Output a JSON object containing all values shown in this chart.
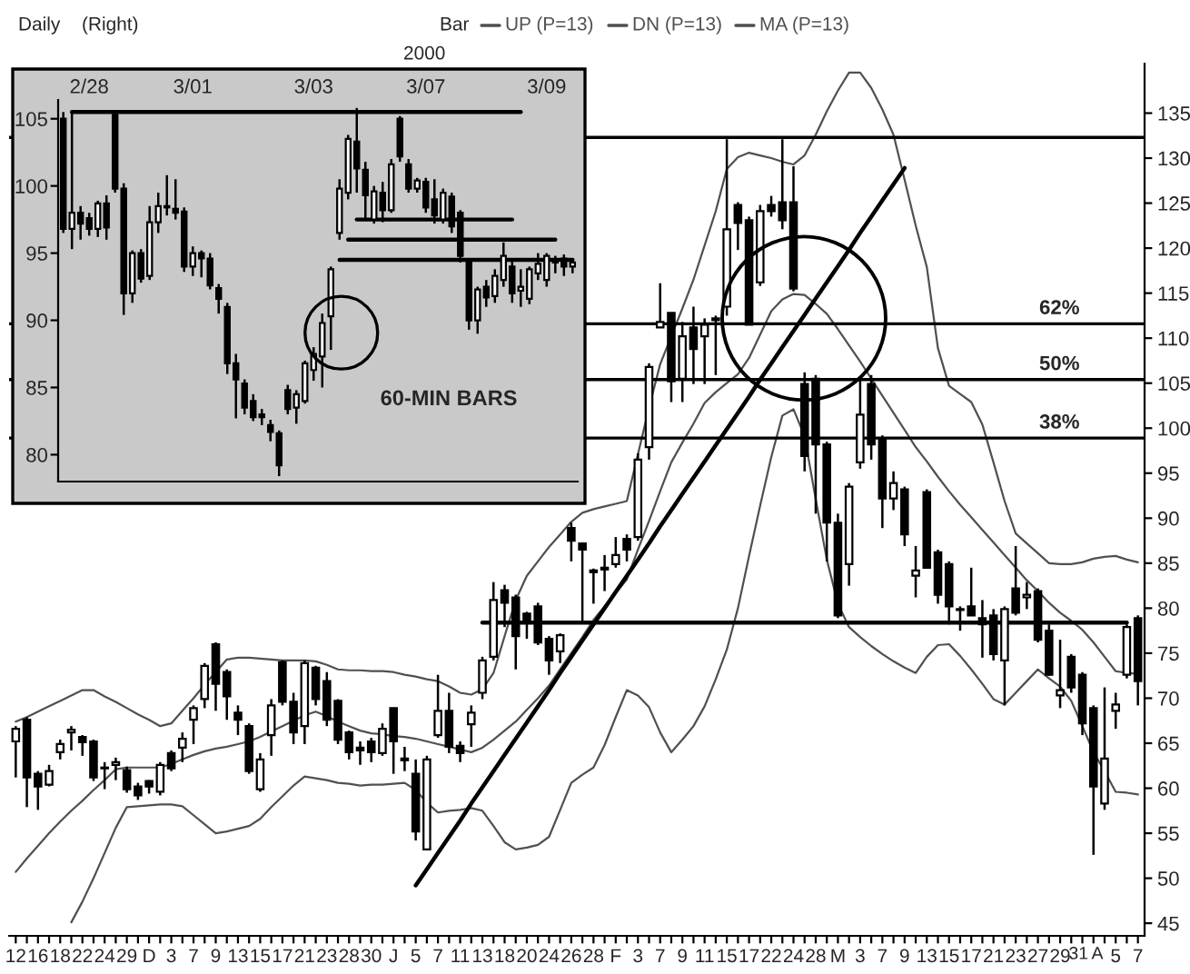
{
  "chart_data": [
    {
      "type": "candlestick",
      "annotations": [
        "Daily",
        "(Right)",
        "Bar",
        "2000",
        {
          "text": "62%",
          "y": 111.6
        },
        {
          "text": "50%",
          "y": 105.4
        },
        {
          "text": "38%",
          "y": 98.9
        }
      ],
      "categories": [
        "12",
        null,
        "16",
        null,
        "18",
        null,
        "22",
        null,
        "24",
        null,
        "29",
        null,
        "D",
        null,
        "3",
        null,
        "7",
        null,
        "9",
        null,
        "13",
        null,
        "15",
        null,
        "17",
        null,
        "21",
        null,
        "23",
        null,
        "28",
        null,
        "30",
        null,
        "J",
        null,
        "5",
        null,
        "7",
        null,
        "11",
        null,
        "13",
        null,
        "18",
        null,
        "20",
        null,
        "24",
        null,
        "26",
        null,
        "28",
        null,
        "F",
        null,
        "3",
        null,
        "7",
        null,
        "9",
        null,
        "11",
        null,
        "15",
        null,
        "17",
        null,
        "22",
        null,
        "24",
        null,
        "28",
        null,
        "M",
        null,
        "3",
        null,
        "7",
        null,
        "9",
        null,
        "13",
        null,
        "15",
        null,
        "17",
        null,
        "21",
        null,
        "23",
        null,
        "27",
        null,
        "29",
        null,
        "31",
        "A",
        null,
        "5",
        null,
        "7"
      ],
      "ohlc": [
        [
          65.2,
          66.9,
          61.2,
          66.6
        ],
        [
          67.6,
          67.9,
          57.9,
          61.2
        ],
        [
          61.6,
          61.9,
          57.6,
          60.2
        ],
        [
          60.4,
          62.6,
          60.2,
          61.9
        ],
        [
          64.0,
          65.4,
          63.2,
          64.9
        ],
        [
          66.2,
          66.9,
          64.2,
          66.5
        ],
        [
          65.7,
          65.9,
          63.6,
          65.1
        ],
        [
          65.2,
          65.4,
          60.8,
          61.2
        ],
        [
          62.3,
          62.9,
          59.9,
          62.2
        ],
        [
          62.6,
          63.4,
          60.9,
          62.9
        ],
        [
          62.0,
          62.4,
          59.5,
          59.9
        ],
        [
          60.2,
          60.6,
          58.7,
          59.2
        ],
        [
          60.8,
          60.9,
          59.4,
          60.2
        ],
        [
          59.6,
          62.9,
          59.2,
          62.6
        ],
        [
          63.9,
          64.2,
          61.9,
          62.2
        ],
        [
          64.5,
          66.2,
          62.9,
          65.5
        ],
        [
          67.6,
          69.2,
          64.9,
          68.9
        ],
        [
          69.9,
          73.9,
          68.9,
          73.6
        ],
        [
          76.0,
          76.2,
          68.6,
          71.6
        ],
        [
          72.9,
          73.2,
          67.6,
          70.2
        ],
        [
          68.4,
          69.2,
          65.9,
          67.6
        ],
        [
          66.9,
          67.2,
          61.6,
          61.9
        ],
        [
          59.9,
          63.9,
          59.6,
          63.2
        ],
        [
          65.9,
          69.9,
          63.6,
          69.2
        ],
        [
          74.0,
          74.2,
          69.2,
          69.6
        ],
        [
          69.6,
          70.6,
          64.9,
          66.2
        ],
        [
          66.9,
          74.2,
          64.9,
          73.9
        ],
        [
          73.4,
          73.6,
          69.2,
          69.9
        ],
        [
          71.9,
          72.9,
          66.9,
          67.6
        ],
        [
          69.7,
          69.9,
          64.9,
          65.4
        ],
        [
          66.2,
          66.4,
          63.2,
          64.0
        ],
        [
          64.5,
          65.2,
          62.6,
          64.2
        ],
        [
          65.2,
          65.6,
          62.9,
          64.0
        ],
        [
          63.9,
          67.2,
          63.6,
          66.6
        ],
        [
          68.9,
          68.9,
          61.6,
          65.2
        ],
        [
          63.3,
          64.6,
          61.9,
          63.1
        ],
        [
          61.6,
          63.2,
          54.2,
          55.2
        ],
        [
          53.2,
          63.6,
          53.2,
          63.2
        ],
        [
          65.9,
          72.6,
          65.6,
          68.6
        ],
        [
          68.6,
          70.6,
          63.9,
          64.6
        ],
        [
          64.7,
          65.2,
          62.9,
          63.9
        ],
        [
          67.1,
          69.2,
          64.6,
          68.4
        ],
        [
          70.6,
          74.6,
          69.9,
          74.2
        ],
        [
          74.6,
          82.9,
          74.2,
          80.9
        ],
        [
          82.0,
          82.6,
          77.9,
          80.6
        ],
        [
          81.2,
          81.5,
          73.2,
          76.9
        ],
        [
          79.4,
          79.6,
          76.6,
          78.6
        ],
        [
          80.2,
          80.6,
          75.9,
          76.2
        ],
        [
          76.6,
          76.9,
          72.6,
          74.2
        ],
        [
          75.2,
          77.2,
          73.9,
          77.0
        ],
        [
          88.9,
          89.5,
          85.2,
          87.5
        ],
        [
          87.2,
          87.2,
          78.5,
          86.5
        ],
        [
          84.2,
          84.4,
          80.5,
          84.0
        ],
        [
          84.3,
          85.9,
          81.9,
          84.5
        ],
        [
          84.9,
          87.9,
          84.5,
          85.9
        ],
        [
          87.7,
          88.2,
          85.2,
          86.5
        ],
        [
          87.9,
          97.2,
          87.5,
          96.5
        ],
        [
          97.9,
          107.2,
          96.5,
          106.8
        ],
        [
          111.2,
          116.1,
          111.2,
          111.8
        ],
        [
          112.8,
          112.8,
          102.9,
          105.2
        ],
        [
          105.5,
          111.8,
          102.9,
          110.2
        ],
        [
          111.2,
          113.5,
          104.9,
          108.8
        ],
        [
          110.2,
          112.2,
          104.9,
          111.5
        ],
        [
          112.0,
          112.5,
          105.9,
          112.2
        ],
        [
          113.5,
          132.1,
          112.5,
          122.1
        ],
        [
          124.8,
          125.1,
          119.8,
          122.8
        ],
        [
          123.1,
          123.5,
          111.5,
          111.5
        ],
        [
          116.2,
          124.8,
          115.8,
          124.1
        ],
        [
          124.8,
          125.8,
          123.5,
          124.1
        ],
        [
          125.1,
          132.1,
          122.1,
          123.1
        ],
        [
          125.1,
          129.1,
          115.2,
          115.5
        ],
        [
          104.9,
          106.2,
          95.2,
          96.9
        ],
        [
          105.5,
          105.9,
          90.5,
          98.2
        ],
        [
          98.2,
          98.5,
          85.2,
          89.5
        ],
        [
          89.5,
          90.5,
          78.9,
          79.2
        ],
        [
          84.9,
          93.9,
          82.5,
          93.5
        ],
        [
          96.2,
          105.5,
          95.5,
          101.5
        ],
        [
          104.9,
          105.9,
          96.5,
          98.2
        ],
        [
          98.9,
          99.2,
          88.9,
          92.2
        ],
        [
          92.2,
          95.2,
          90.9,
          93.9
        ],
        [
          93.2,
          93.5,
          86.9,
          88.2
        ],
        [
          83.6,
          86.9,
          81.2,
          84.2
        ],
        [
          92.9,
          93.2,
          84.5,
          84.5
        ],
        [
          86.2,
          86.5,
          80.5,
          81.5
        ],
        [
          84.9,
          85.2,
          78.2,
          80.2
        ],
        [
          79.9,
          80.2,
          77.5,
          79.8
        ],
        [
          80.2,
          84.5,
          79.2,
          79.2
        ],
        [
          78.9,
          80.9,
          74.5,
          78.2
        ],
        [
          79.2,
          79.9,
          74.2,
          74.9
        ],
        [
          74.2,
          80.2,
          69.2,
          79.9
        ],
        [
          82.2,
          86.9,
          79.2,
          79.5
        ],
        [
          81.2,
          82.9,
          79.9,
          81.5
        ],
        [
          81.9,
          82.2,
          76.2,
          76.5
        ],
        [
          77.5,
          78.2,
          72.5,
          72.6
        ],
        [
          70.3,
          76.5,
          68.9,
          70.9
        ],
        [
          74.6,
          74.9,
          70.6,
          71.2
        ],
        [
          72.6,
          72.9,
          65.9,
          67.2
        ],
        [
          68.9,
          69.2,
          52.6,
          60.2
        ],
        [
          58.3,
          71.2,
          57.6,
          63.3
        ],
        [
          68.6,
          70.6,
          66.6,
          69.3
        ],
        [
          72.6,
          78.2,
          72.2,
          77.9
        ],
        [
          78.9,
          79.2,
          69.2,
          71.9
        ]
      ],
      "series": [
        {
          "name": "UP (P=13)",
          "color": "#505050",
          "type": "line",
          "values": [
            67.4,
            67.9,
            68.5,
            69.1,
            69.7,
            70.3,
            70.9,
            70.9,
            70.2,
            69.6,
            68.9,
            68.2,
            67.6,
            66.9,
            67.2,
            68.6,
            70.0,
            71.5,
            72.9,
            74.3,
            74.5,
            74.5,
            74.4,
            74.3,
            74.2,
            74.2,
            74.2,
            74.1,
            73.7,
            73.2,
            73.1,
            73.1,
            73.0,
            73.0,
            72.9,
            72.6,
            72.4,
            72.1,
            71.9,
            71.3,
            70.6,
            70.4,
            71.0,
            72.8,
            76.9,
            80.9,
            83.6,
            85.2,
            86.8,
            88.2,
            89.6,
            90.6,
            91.0,
            91.3,
            91.6,
            91.9,
            97.1,
            102.3,
            107.1,
            110.2,
            113.3,
            116.5,
            120.3,
            124.1,
            128.8,
            130.1,
            130.6,
            130.3,
            130.0,
            129.6,
            129.3,
            130.3,
            132.6,
            135.2,
            137.5,
            139.5,
            139.5,
            137.8,
            135.4,
            132.6,
            127.6,
            122.5,
            117.9,
            108.9,
            104.7,
            103.8,
            102.9,
            100.4,
            96.2,
            91.9,
            88.3,
            87.2,
            86.1,
            85.0,
            84.9,
            84.9,
            85.1,
            85.5,
            85.7,
            85.8,
            85.4,
            85.1
          ]
        },
        {
          "name": "DN (P=13)",
          "color": "#505050",
          "type": "line",
          "values": [
            null,
            null,
            null,
            null,
            null,
            45.1,
            47.4,
            50.0,
            52.8,
            55.6,
            57.9,
            58.0,
            58.1,
            58.2,
            58.2,
            58.0,
            57.0,
            56.0,
            55.0,
            55.2,
            55.5,
            55.8,
            56.6,
            57.9,
            59.1,
            60.3,
            61.3,
            61.1,
            60.9,
            60.6,
            60.5,
            60.3,
            60.4,
            60.4,
            60.5,
            60.6,
            59.8,
            58.4,
            57.3,
            57.5,
            57.6,
            57.8,
            57.5,
            55.8,
            54.0,
            53.2,
            53.4,
            53.7,
            54.6,
            57.6,
            60.6,
            61.5,
            62.3,
            64.8,
            67.9,
            70.9,
            70.3,
            69.0,
            66.2,
            64.0,
            65.4,
            66.9,
            69.1,
            72.1,
            75.4,
            80.0,
            85.8,
            91.4,
            96.8,
            101.4,
            102.1,
            99.1,
            92.1,
            85.4,
            80.5,
            77.9,
            76.8,
            75.8,
            74.9,
            74.1,
            73.4,
            72.8,
            74.6,
            75.9,
            76.0,
            74.7,
            73.2,
            71.6,
            69.9,
            69.3,
            70.6,
            71.9,
            73.2,
            72.2,
            71.3,
            69.7,
            66.9,
            64.0,
            61.9,
            59.6,
            59.5,
            59.3
          ]
        },
        {
          "name": "MA (P=13)",
          "color": "#505050",
          "type": "line",
          "values": [
            50.7,
            52.2,
            53.6,
            55.0,
            56.3,
            57.5,
            58.6,
            59.8,
            60.9,
            62.1,
            62.3,
            62.3,
            62.3,
            62.3,
            62.7,
            63.2,
            63.7,
            64.1,
            64.4,
            64.6,
            64.9,
            65.2,
            65.7,
            66.3,
            66.9,
            67.5,
            68.1,
            68.5,
            68.0,
            67.4,
            66.9,
            66.4,
            66.1,
            66.0,
            65.8,
            65.7,
            65.5,
            65.2,
            64.9,
            64.6,
            64.3,
            64.0,
            64.5,
            65.4,
            66.4,
            67.4,
            68.7,
            70.0,
            71.4,
            73.2,
            75.0,
            76.8,
            78.7,
            80.2,
            81.7,
            83.2,
            86.5,
            89.7,
            93.0,
            96.2,
            98.4,
            100.5,
            102.8,
            104.0,
            105.0,
            106.0,
            107.8,
            110.4,
            113.0,
            114.3,
            114.9,
            114.8,
            113.8,
            112.7,
            111.0,
            109.2,
            107.4,
            105.5,
            103.6,
            101.7,
            99.8,
            97.9,
            96.3,
            94.6,
            93.0,
            91.5,
            90.1,
            88.7,
            87.3,
            85.9,
            84.5,
            83.1,
            81.9,
            80.6,
            79.5,
            78.6,
            77.6,
            76.2,
            74.6,
            73.0,
            72.8,
            72.7
          ]
        },
        {
          "color": "#000000",
          "type": "line",
          "values": [
            null,
            null,
            null,
            null,
            null,
            null,
            null,
            null,
            null,
            null,
            null,
            null,
            null,
            null,
            null,
            null,
            null,
            null,
            null,
            null,
            null,
            null,
            null,
            null,
            null,
            null,
            null,
            null,
            null,
            null,
            null,
            null,
            null,
            null,
            null,
            null,
            49.2,
            51.0,
            52.8,
            54.6,
            56.4,
            58.3,
            60.1,
            61.9,
            63.7,
            65.5,
            67.3,
            69.1,
            70.9,
            72.8,
            74.6,
            76.4,
            78.2,
            80.0,
            81.8,
            83.6,
            85.4,
            87.2,
            89.1,
            90.9,
            92.7,
            94.5,
            96.3,
            98.1,
            99.9,
            101.7,
            103.5,
            105.4,
            107.2,
            109.0,
            110.8,
            112.6,
            114.4,
            116.2,
            118.0,
            119.8,
            121.7,
            123.5,
            125.3,
            127.1,
            128.9,
            null,
            null,
            null,
            null,
            null,
            null,
            null,
            null,
            null,
            null,
            null,
            null,
            null,
            null,
            null,
            null,
            null,
            null,
            null,
            null,
            null
          ]
        },
        {
          "color": "#000000",
          "type": "line",
          "values": [
            null,
            null,
            null,
            null,
            null,
            null,
            null,
            null,
            null,
            null,
            null,
            null,
            null,
            null,
            null,
            null,
            null,
            null,
            null,
            null,
            null,
            null,
            null,
            null,
            null,
            null,
            null,
            null,
            null,
            null,
            null,
            null,
            null,
            null,
            null,
            null,
            null,
            null,
            null,
            null,
            null,
            null,
            78.4,
            78.4,
            78.4,
            78.4,
            78.4,
            78.4,
            78.4,
            78.4,
            78.4,
            78.4,
            78.4,
            78.4,
            78.4,
            78.4,
            78.4,
            78.4,
            78.4,
            78.4,
            78.4,
            78.4,
            78.4,
            78.4,
            78.4,
            78.4,
            78.4,
            78.4,
            78.4,
            78.4,
            78.4,
            78.4,
            78.4,
            78.4,
            78.4,
            78.4,
            78.4,
            78.4,
            78.4,
            78.4,
            78.4,
            78.4,
            78.4,
            78.4,
            78.4,
            78.4,
            78.4,
            78.4,
            78.4,
            78.4,
            78.4,
            78.4,
            78.4,
            78.4,
            78.4,
            78.4,
            78.4,
            78.4,
            78.4,
            78.4,
            78.4,
            null
          ]
        }
      ],
      "ref_lines": [
        {
          "axis": "y",
          "value": 132.3
        },
        {
          "axis": "y",
          "value": 111.6
        },
        {
          "axis": "y",
          "value": 105.4
        },
        {
          "axis": "y",
          "value": 98.9
        }
      ],
      "ylim": [
        43.6,
        140.5
      ],
      "yticks": [
        45,
        50,
        55,
        60,
        65,
        70,
        75,
        80,
        85,
        90,
        95,
        100,
        105,
        110,
        115,
        120,
        125,
        130,
        135
      ],
      "legend": "top",
      "grid": false
    },
    {
      "type": "candlestick",
      "annotations": [
        "60-MIN BARS"
      ],
      "categories": [
        null,
        null,
        null,
        "2/28",
        null,
        null,
        null,
        null,
        null,
        null,
        null,
        null,
        null,
        null,
        null,
        "3/01",
        null,
        null,
        null,
        null,
        null,
        null,
        null,
        null,
        null,
        null,
        null,
        null,
        null,
        "3/03",
        null,
        null,
        null,
        null,
        null,
        null,
        null,
        null,
        null,
        null,
        null,
        null,
        "3/07",
        null,
        null,
        null,
        null,
        null,
        null,
        null,
        null,
        null,
        null,
        null,
        null,
        null,
        "3/09",
        null,
        null,
        null
      ],
      "ohlc": [
        [
          105.0,
          105.5,
          96.5,
          96.8
        ],
        [
          96.8,
          105.5,
          95.3,
          98.0
        ],
        [
          98.0,
          98.5,
          96.0,
          97.2
        ],
        [
          97.6,
          98.0,
          96.3,
          96.8
        ],
        [
          96.8,
          98.9,
          96.2,
          98.7
        ],
        [
          98.7,
          99.3,
          96.0,
          96.9
        ],
        [
          105.3,
          105.5,
          99.5,
          99.8
        ],
        [
          99.8,
          100.2,
          90.4,
          92.0
        ],
        [
          92.0,
          95.2,
          91.3,
          95.0
        ],
        [
          95.0,
          95.3,
          92.8,
          93.1
        ],
        [
          93.3,
          98.5,
          93.0,
          97.3
        ],
        [
          97.3,
          99.5,
          96.5,
          98.5
        ],
        [
          98.5,
          100.8,
          97.8,
          98.4
        ],
        [
          98.3,
          100.5,
          97.5,
          98.0
        ],
        [
          98.1,
          98.4,
          93.6,
          94.0
        ],
        [
          94.0,
          95.5,
          93.3,
          95.0
        ],
        [
          95.0,
          95.2,
          93.2,
          94.6
        ],
        [
          94.6,
          95.0,
          92.3,
          92.6
        ],
        [
          92.4,
          92.7,
          90.5,
          91.6
        ],
        [
          91.0,
          91.3,
          86.0,
          86.8
        ],
        [
          86.8,
          87.5,
          82.7,
          85.6
        ],
        [
          85.3,
          85.6,
          83.0,
          83.5
        ],
        [
          84.0,
          84.5,
          82.5,
          82.8
        ],
        [
          83.0,
          83.4,
          82.2,
          82.8
        ],
        [
          82.2,
          82.6,
          81.0,
          81.7
        ],
        [
          81.6,
          81.8,
          78.4,
          79.2
        ],
        [
          84.8,
          85.2,
          83.0,
          83.4
        ],
        [
          83.5,
          84.8,
          82.3,
          84.5
        ],
        [
          84.0,
          87.0,
          83.8,
          86.8
        ],
        [
          86.3,
          88.0,
          85.5,
          87.5
        ],
        [
          87.3,
          90.5,
          85.0,
          89.8
        ],
        [
          90.3,
          94.0,
          87.8,
          93.8
        ],
        [
          96.5,
          100.5,
          96.0,
          99.8
        ],
        [
          99.5,
          103.8,
          99.0,
          103.5
        ],
        [
          103.3,
          105.8,
          99.5,
          101.3
        ],
        [
          101.2,
          101.8,
          97.5,
          99.3
        ],
        [
          97.5,
          100.0,
          97.2,
          99.6
        ],
        [
          99.5,
          100.3,
          97.3,
          98.2
        ],
        [
          98.2,
          102.0,
          98.0,
          101.6
        ],
        [
          105.0,
          105.2,
          101.8,
          102.2
        ],
        [
          101.6,
          102.0,
          99.5,
          99.8
        ],
        [
          99.8,
          100.6,
          99.5,
          100.4
        ],
        [
          100.3,
          100.6,
          98.0,
          98.4
        ],
        [
          99.0,
          100.5,
          97.2,
          97.8
        ],
        [
          97.5,
          99.8,
          97.2,
          99.5
        ],
        [
          99.2,
          99.5,
          96.5,
          97.0
        ],
        [
          98.0,
          98.2,
          94.3,
          94.8
        ],
        [
          94.3,
          94.6,
          89.3,
          90.0
        ],
        [
          90.0,
          92.5,
          89.0,
          92.3
        ],
        [
          92.5,
          93.0,
          91.0,
          91.7
        ],
        [
          91.8,
          93.8,
          91.3,
          93.3
        ],
        [
          93.0,
          95.8,
          92.5,
          94.8
        ],
        [
          94.0,
          94.5,
          91.3,
          92.0
        ],
        [
          92.2,
          93.8,
          91.0,
          92.5
        ],
        [
          91.6,
          94.0,
          91.2,
          93.8
        ],
        [
          93.5,
          95.0,
          93.0,
          94.2
        ],
        [
          93.0,
          95.0,
          92.5,
          94.8
        ],
        [
          94.3,
          94.8,
          93.5,
          94.4
        ],
        [
          94.6,
          94.9,
          93.3,
          94.0
        ],
        [
          94.0,
          94.5,
          93.5,
          94.3
        ]
      ],
      "series": [
        {
          "color": "#000000",
          "type": "line",
          "values": [
            null,
            105.5,
            105.5,
            105.5,
            105.5,
            105.5,
            105.5,
            105.5,
            105.5,
            105.5,
            105.5,
            105.5,
            105.5,
            105.5,
            105.5,
            105.5,
            105.5,
            105.5,
            105.5,
            105.5,
            105.5,
            105.5,
            105.5,
            105.5,
            105.5,
            105.5,
            105.5,
            105.5,
            105.5,
            105.5,
            105.5,
            105.5,
            105.5,
            105.5,
            105.5,
            105.5,
            105.5,
            105.5,
            105.5,
            105.5,
            105.5,
            105.5,
            105.5,
            105.5,
            105.5,
            105.5,
            105.5,
            105.5,
            105.5,
            105.5,
            105.5,
            105.5,
            105.5,
            105.5,
            null,
            null,
            null,
            null,
            null,
            null
          ]
        },
        {
          "color": "#000000",
          "type": "line",
          "values": [
            null,
            null,
            null,
            null,
            null,
            null,
            null,
            null,
            null,
            null,
            null,
            null,
            null,
            null,
            null,
            null,
            null,
            null,
            null,
            null,
            null,
            null,
            null,
            null,
            null,
            null,
            null,
            null,
            null,
            null,
            null,
            null,
            null,
            null,
            97.5,
            97.5,
            97.5,
            97.5,
            97.5,
            97.5,
            97.5,
            97.5,
            97.5,
            97.5,
            97.5,
            97.5,
            97.5,
            97.5,
            97.5,
            97.5,
            97.5,
            97.5,
            97.5,
            null,
            null,
            null,
            null,
            null,
            null,
            null
          ]
        },
        {
          "color": "#000000",
          "type": "line",
          "values": [
            null,
            null,
            null,
            null,
            null,
            null,
            null,
            null,
            null,
            null,
            null,
            null,
            null,
            null,
            null,
            null,
            null,
            null,
            null,
            null,
            null,
            null,
            null,
            null,
            null,
            null,
            null,
            null,
            null,
            null,
            null,
            null,
            null,
            96.0,
            96.0,
            96.0,
            96.0,
            96.0,
            96.0,
            96.0,
            96.0,
            96.0,
            96.0,
            96.0,
            96.0,
            96.0,
            96.0,
            96.0,
            96.0,
            96.0,
            96.0,
            96.0,
            96.0,
            96.0,
            96.0,
            96.0,
            96.0,
            96.0,
            null,
            null
          ]
        },
        {
          "color": "#000000",
          "type": "line",
          "values": [
            null,
            null,
            null,
            null,
            null,
            null,
            null,
            null,
            null,
            null,
            null,
            null,
            null,
            null,
            null,
            null,
            null,
            null,
            null,
            null,
            null,
            null,
            null,
            null,
            null,
            null,
            null,
            null,
            null,
            null,
            null,
            null,
            94.5,
            94.5,
            94.5,
            94.5,
            94.5,
            94.5,
            94.5,
            94.5,
            94.5,
            94.5,
            94.5,
            94.5,
            94.5,
            94.5,
            94.5,
            94.5,
            94.5,
            94.5,
            94.5,
            94.5,
            94.5,
            94.5,
            94.5,
            94.5,
            94.5,
            94.5,
            94.5,
            94.5
          ]
        }
      ],
      "ylim": [
        78.0,
        106.4
      ],
      "yticks": [
        80,
        85,
        90,
        95,
        100,
        105
      ],
      "grid": false
    }
  ]
}
